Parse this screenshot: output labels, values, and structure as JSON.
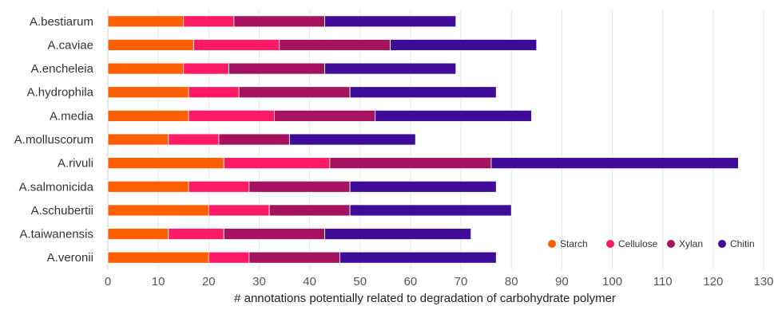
{
  "chart_data": {
    "type": "bar",
    "orientation": "horizontal",
    "stacked": true,
    "categories": [
      "A.bestiarum",
      "A.caviae",
      "A.encheleia",
      "A.hydrophila",
      "A.media",
      "A.molluscorum",
      "A.rivuli",
      "A.salmonicida",
      "A.schubertii",
      "A.taiwanensis",
      "A.veronii"
    ],
    "series": [
      {
        "name": "Starch",
        "color": "#ff5f00",
        "values": [
          15,
          17,
          15,
          16,
          16,
          12,
          23,
          16,
          20,
          12,
          20
        ]
      },
      {
        "name": "Cellulose",
        "color": "#ff1a66",
        "values": [
          10,
          17,
          9,
          10,
          17,
          10,
          21,
          12,
          12,
          11,
          8
        ]
      },
      {
        "name": "Xylan",
        "color": "#a5135e",
        "values": [
          18,
          22,
          19,
          22,
          20,
          14,
          32,
          20,
          16,
          20,
          18
        ]
      },
      {
        "name": "Chitin",
        "color": "#3f0c99",
        "values": [
          26,
          29,
          26,
          29,
          31,
          25,
          49,
          29,
          32,
          29,
          31
        ]
      }
    ],
    "xlabel": "# annotations potentially related to degradation of carbohydrate polymer",
    "ylabel": "",
    "xlim": [
      0,
      130
    ],
    "xticks": [
      "0",
      "10",
      "20",
      "30",
      "40",
      "50",
      "60",
      "70",
      "80",
      "90",
      "100",
      "110",
      "120",
      "130"
    ],
    "grid": "vertical",
    "legend_position": "bottom-right"
  }
}
